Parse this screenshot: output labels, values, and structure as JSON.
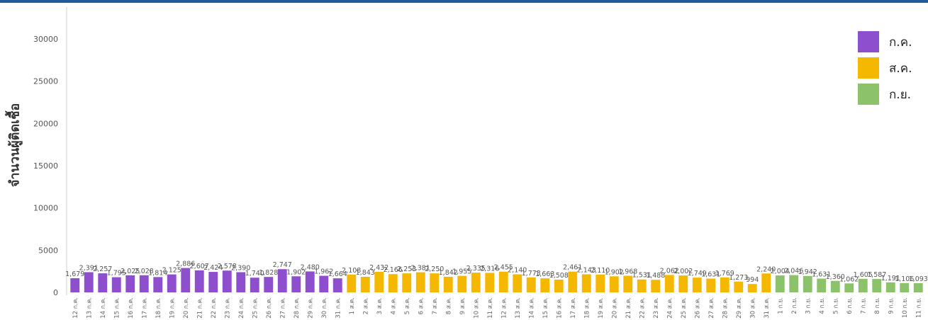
{
  "chart_data": {
    "type": "bar",
    "ylabel": "จำนวนผู้ติดเชื้อ",
    "ylim": [
      0,
      32000
    ],
    "yticks": [
      0,
      5000,
      10000,
      15000,
      20000,
      25000,
      30000
    ],
    "grid": false,
    "legend_position": "top-right",
    "categories": [
      "12 ก.ค.",
      "13 ก.ค.",
      "14 ก.ค.",
      "15 ก.ค.",
      "16 ก.ค.",
      "17 ก.ค.",
      "18 ก.ค.",
      "19 ก.ค.",
      "20 ก.ค.",
      "21 ก.ค.",
      "22 ก.ค.",
      "23 ก.ค.",
      "24 ก.ค.",
      "25 ก.ค.",
      "26 ก.ค.",
      "27 ก.ค.",
      "28 ก.ค.",
      "29 ก.ค.",
      "30 ก.ค.",
      "31 ก.ค.",
      "1 ส.ค.",
      "2 ส.ค.",
      "3 ส.ค.",
      "4 ส.ค.",
      "5 ส.ค.",
      "6 ส.ค.",
      "7 ส.ค.",
      "8 ส.ค.",
      "9 ส.ค.",
      "10 ส.ค.",
      "11 ส.ค.",
      "12 ส.ค.",
      "13 ส.ค.",
      "14 ส.ค.",
      "15 ส.ค.",
      "16 ส.ค.",
      "17 ส.ค.",
      "18 ส.ค.",
      "19 ส.ค.",
      "20 ส.ค.",
      "21 ส.ค.",
      "22 ส.ค.",
      "23 ส.ค.",
      "24 ส.ค.",
      "25 ส.ค.",
      "26 ส.ค.",
      "27 ส.ค.",
      "28 ส.ค.",
      "29 ส.ค.",
      "30 ส.ค.",
      "31 ส.ค.",
      "1 ก.ย.",
      "2 ก.ย.",
      "3 ก.ย.",
      "4 ก.ย.",
      "5 ก.ย.",
      "6 ก.ย.",
      "7 ก.ย.",
      "8 ก.ย.",
      "9 ก.ย.",
      "10 ก.ย.",
      "11 ก.ย."
    ],
    "values": [
      1679,
      2391,
      2257,
      1795,
      2025,
      2028,
      1814,
      2125,
      2886,
      2607,
      2424,
      2578,
      2390,
      1740,
      1828,
      2747,
      1902,
      2480,
      1962,
      1664,
      2108,
      1843,
      2432,
      2166,
      2253,
      2381,
      2250,
      1842,
      1955,
      2335,
      2316,
      2455,
      2140,
      1773,
      1663,
      1508,
      2461,
      2143,
      2110,
      1902,
      1968,
      1531,
      1488,
      2062,
      2002,
      1749,
      1631,
      1769,
      1273,
      994,
      2240,
      2004,
      2046,
      1942,
      1631,
      1360,
      1062,
      1605,
      1587,
      1191,
      1106,
      1093
    ],
    "value_labels": [
      "1,679",
      "2,391",
      "2,257",
      "1,795",
      "2,025",
      "2,028",
      "1,814",
      "2,125",
      "2,886",
      "2,607",
      "2,424",
      "2,578",
      "2,390",
      "1,740",
      "1,828",
      "2,747",
      "1,902",
      "2,480",
      "1,962",
      "1,664",
      "2,108",
      "1,843",
      "2,432",
      "2,166",
      "2,253",
      "2,381",
      "2,250",
      "1,842",
      "1,955",
      "2,335",
      "2,316",
      "2,455",
      "2,140",
      "1,773",
      "1,663",
      "1,508",
      "2,461",
      "2,143",
      "2,110",
      "1,902",
      "1,968",
      "1,531",
      "1,488",
      "2,062",
      "2,002",
      "1,749",
      "1,631",
      "1,769",
      "1,273",
      "994",
      "2,240",
      "2,004",
      "2,046",
      "1,942",
      "1,631",
      "1,360",
      "1,062",
      "1,605",
      "1,587",
      "1,191",
      "1,106",
      "1,093"
    ],
    "series": [
      {
        "name": "ก.ค.",
        "color": "#8e4fcf",
        "start": 0,
        "count": 20
      },
      {
        "name": "ส.ค.",
        "color": "#f5b800",
        "start": 20,
        "count": 31
      },
      {
        "name": "ก.ย.",
        "color": "#8cc26a",
        "start": 51,
        "count": 11
      }
    ]
  }
}
